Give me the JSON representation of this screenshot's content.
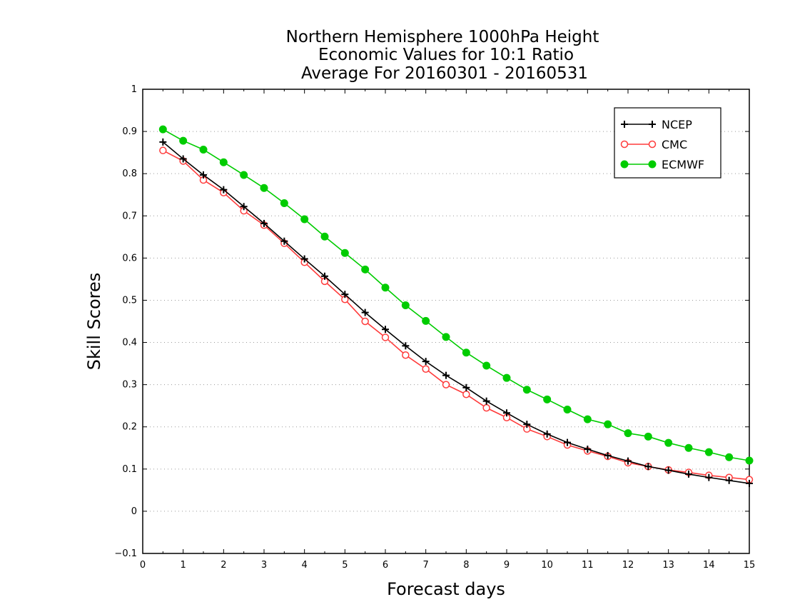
{
  "chart_data": {
    "type": "line",
    "title_lines": [
      "Northern Hemisphere 1000hPa Height",
      "Economic Values for 10:1 Ratio",
      "Average For 20160301 - 20160531"
    ],
    "xlabel": "Forecast days",
    "ylabel": "Skill Scores",
    "xlim": [
      0,
      15
    ],
    "ylim": [
      -0.1,
      1
    ],
    "xticks": [
      0,
      1,
      2,
      3,
      4,
      5,
      6,
      7,
      8,
      9,
      10,
      11,
      12,
      13,
      14,
      15
    ],
    "yticks": [
      -0.1,
      0,
      0.1,
      0.2,
      0.3,
      0.4,
      0.5,
      0.6,
      0.7,
      0.8,
      0.9,
      1
    ],
    "xtick_labels": [
      "0",
      "1",
      "2",
      "3",
      "4",
      "5",
      "6",
      "7",
      "8",
      "9",
      "10",
      "11",
      "12",
      "13",
      "14",
      "15"
    ],
    "ytick_labels": [
      "−0.1",
      "0",
      "0.1",
      "0.2",
      "0.3",
      "0.4",
      "0.5",
      "0.6",
      "0.7",
      "0.8",
      "0.9",
      "1"
    ],
    "grid": "horizontal dotted",
    "legend_position": "top-right",
    "x": [
      0.5,
      1.0,
      1.5,
      2.0,
      2.5,
      3.0,
      3.5,
      4.0,
      4.5,
      5.0,
      5.5,
      6.0,
      6.5,
      7.0,
      7.5,
      8.0,
      8.5,
      9.0,
      9.5,
      10.0,
      10.5,
      11.0,
      11.5,
      12.0,
      12.5,
      13.0,
      13.5,
      14.0,
      14.5,
      15.0
    ],
    "series": [
      {
        "name": "NCEP",
        "color": "#000000",
        "marker": "plus",
        "values": [
          0.875,
          0.835,
          0.797,
          0.762,
          0.722,
          0.682,
          0.64,
          0.598,
          0.557,
          0.514,
          0.471,
          0.431,
          0.392,
          0.355,
          0.322,
          0.293,
          0.261,
          0.233,
          0.206,
          0.183,
          0.163,
          0.147,
          0.132,
          0.119,
          0.106,
          0.097,
          0.088,
          0.08,
          0.073,
          0.066
        ]
      },
      {
        "name": "CMC",
        "color": "#ff3b3b",
        "marker": "open-circle",
        "values": [
          0.855,
          0.83,
          0.785,
          0.755,
          0.712,
          0.678,
          0.635,
          0.59,
          0.545,
          0.502,
          0.45,
          0.412,
          0.37,
          0.337,
          0.3,
          0.277,
          0.245,
          0.222,
          0.195,
          0.177,
          0.157,
          0.143,
          0.13,
          0.115,
          0.106,
          0.098,
          0.092,
          0.085,
          0.08,
          0.075
        ]
      },
      {
        "name": "ECMWF",
        "color": "#00cc00",
        "marker": "filled-circle",
        "values": [
          0.905,
          0.878,
          0.857,
          0.827,
          0.797,
          0.766,
          0.73,
          0.692,
          0.651,
          0.612,
          0.573,
          0.53,
          0.488,
          0.451,
          0.413,
          0.376,
          0.345,
          0.316,
          0.288,
          0.265,
          0.241,
          0.218,
          0.206,
          0.185,
          0.177,
          0.162,
          0.15,
          0.14,
          0.128,
          0.12
        ]
      }
    ]
  }
}
